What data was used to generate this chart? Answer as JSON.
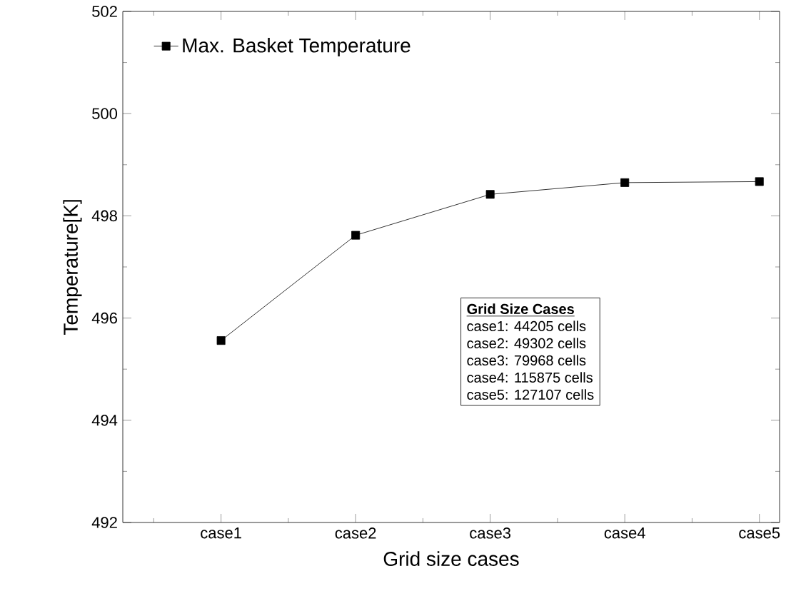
{
  "chart_data": {
    "type": "line",
    "xlabel": "Grid size cases",
    "ylabel": "Temperature[K]",
    "categories": [
      "case1",
      "case2",
      "case3",
      "case4",
      "case5"
    ],
    "series": [
      {
        "name": "Max. Basket Temperature",
        "color": "#000000",
        "values": [
          495.56,
          497.62,
          498.42,
          498.65,
          498.67
        ]
      }
    ],
    "ylim": [
      492,
      502
    ],
    "yticks": [
      492,
      494,
      496,
      498,
      500,
      502
    ],
    "marker": "square",
    "line_style": "solid",
    "legend": "top left",
    "grid": false,
    "annotations": [
      "Grid Size Cases",
      "case1:  44205 cells",
      "case2:  49302 cells",
      "case3:  79968 cells",
      "case4:  115875 cells",
      "case5:  127107 cells"
    ]
  }
}
